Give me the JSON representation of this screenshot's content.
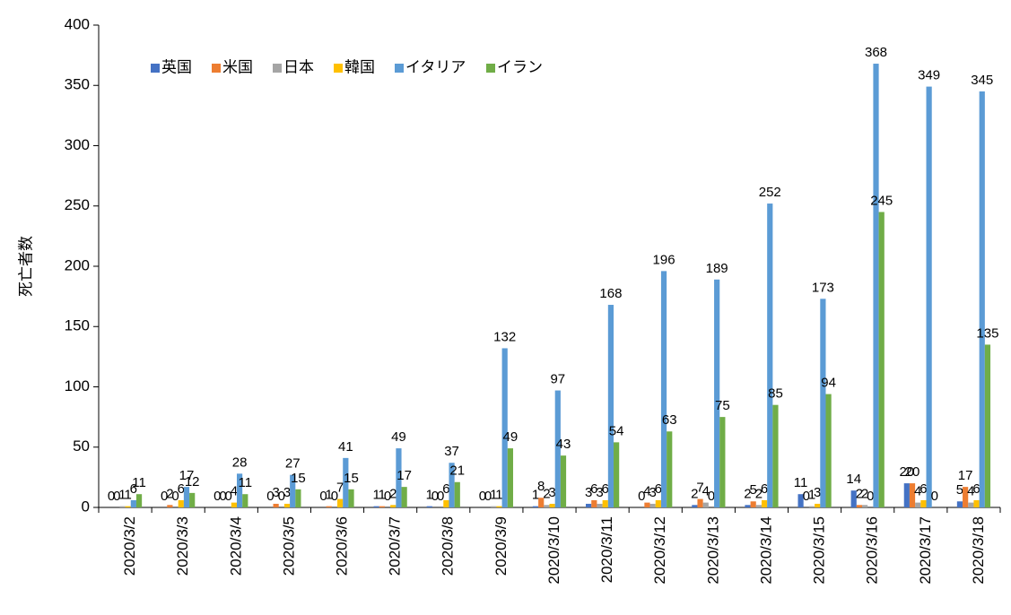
{
  "chart_data": {
    "type": "bar",
    "y_label": "死亡者数",
    "categories": [
      "2020/3/2",
      "2020/3/3",
      "2020/3/4",
      "2020/3/5",
      "2020/3/6",
      "2020/3/7",
      "2020/3/8",
      "2020/3/9",
      "2020/3/10",
      "2020/3/11",
      "2020/3/12",
      "2020/3/13",
      "2020/3/14",
      "2020/3/15",
      "2020/3/16",
      "2020/3/17",
      "2020/3/18"
    ],
    "series": [
      {
        "name": "英国",
        "color": "#4472c4",
        "values": [
          0,
          0,
          0,
          0,
          0,
          1,
          1,
          0,
          1,
          3,
          0,
          2,
          2,
          11,
          14,
          20,
          5
        ]
      },
      {
        "name": "米国",
        "color": "#ed7d31",
        "values": [
          0,
          2,
          0,
          3,
          1,
          1,
          0,
          0,
          8,
          6,
          4,
          7,
          5,
          0,
          2,
          20,
          17
        ]
      },
      {
        "name": "日本",
        "color": "#a5a5a5",
        "values": [
          1,
          0,
          0,
          0,
          0,
          0,
          0,
          1,
          2,
          3,
          3,
          4,
          2,
          1,
          2,
          4,
          4
        ]
      },
      {
        "name": "韓国",
        "color": "#ffc000",
        "values": [
          1,
          6,
          4,
          3,
          7,
          2,
          6,
          1,
          3,
          6,
          6,
          0,
          6,
          3,
          0,
          6,
          6
        ]
      },
      {
        "name": "イタリア",
        "color": "#5b9bd5",
        "values": [
          6,
          17,
          28,
          27,
          41,
          49,
          37,
          132,
          97,
          168,
          196,
          189,
          252,
          173,
          368,
          349,
          345
        ]
      },
      {
        "name": "イラン",
        "color": "#70ad47",
        "values": [
          11,
          12,
          11,
          15,
          15,
          17,
          21,
          49,
          43,
          54,
          63,
          75,
          85,
          94,
          245,
          0,
          135
        ]
      }
    ],
    "ylim": [
      0,
      400
    ],
    "yticks": [
      0,
      50,
      100,
      150,
      200,
      250,
      300,
      350,
      400
    ],
    "legend": "top-left",
    "grid": false
  }
}
